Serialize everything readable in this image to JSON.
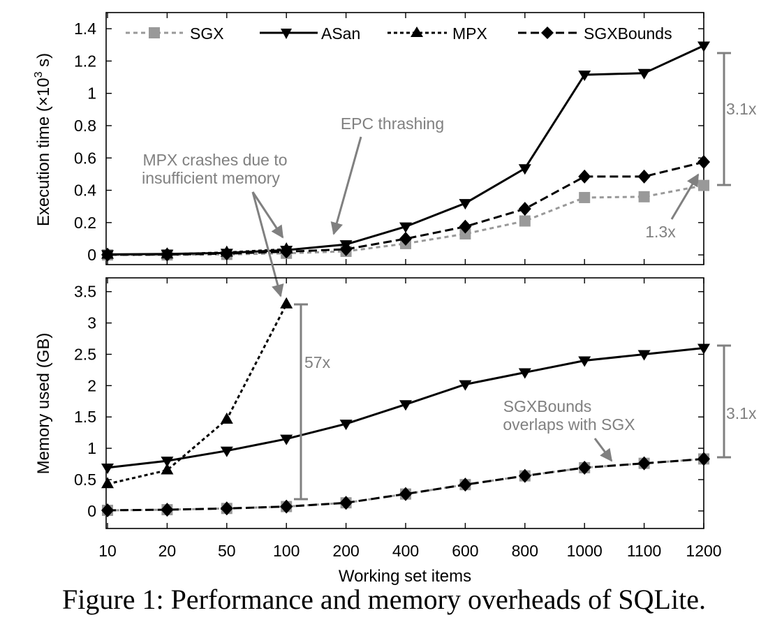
{
  "figure": {
    "caption": "Figure 1: Performance and memory overheads of SQLite.",
    "xlabel": "Working set items"
  },
  "colors": {
    "sgx": "#999999",
    "black": "#000000",
    "annotation": "#808080"
  },
  "chart_data": [
    {
      "type": "line",
      "id": "execution",
      "title": "",
      "ylabel": "Execution time (×10",
      "ylabel_sup": "3",
      "ylabel_end": " s)",
      "xlabel": "Working set items",
      "ylim": [
        -0.06,
        1.5
      ],
      "yticks": [
        "0",
        "0.2",
        "0.4",
        "0.6",
        "0.8",
        "1",
        "1.2",
        "1.4"
      ],
      "categories": [
        "10",
        "20",
        "50",
        "100",
        "200",
        "400",
        "600",
        "800",
        "1000",
        "1100",
        "1200"
      ],
      "legend_position": "top",
      "series": [
        {
          "name": "SGX",
          "style": "sgx",
          "values": [
            0.0,
            0.0,
            0.003,
            0.01,
            0.022,
            0.07,
            0.13,
            0.21,
            0.355,
            0.36,
            0.43
          ]
        },
        {
          "name": "ASan",
          "style": "asan",
          "values": [
            0.003,
            0.006,
            0.012,
            0.03,
            0.065,
            0.175,
            0.32,
            0.535,
            1.115,
            1.125,
            1.295
          ]
        },
        {
          "name": "MPX",
          "style": "mpx",
          "values": [
            0.002,
            0.004,
            0.015,
            0.035,
            null,
            null,
            null,
            null,
            null,
            null,
            null
          ]
        },
        {
          "name": "SGXBounds",
          "style": "sgxb",
          "values": [
            0.001,
            0.002,
            0.008,
            0.02,
            0.035,
            0.1,
            0.175,
            0.285,
            0.485,
            0.485,
            0.575
          ]
        }
      ],
      "annotations": {
        "epc": "EPC thrashing",
        "mpx_line1": "MPX crashes due to",
        "mpx_line2": "insufficient memory",
        "ratio_right": "3.1x",
        "ratio_small": "1.3x"
      }
    },
    {
      "type": "line",
      "id": "memory",
      "title": "",
      "ylabel": "Memory used (GB)",
      "xlabel": "Working set items",
      "ylim": [
        -0.28,
        3.72
      ],
      "yticks": [
        "0",
        "0.5",
        "1",
        "1.5",
        "2",
        "2.5",
        "3",
        "3.5"
      ],
      "categories": [
        "10",
        "20",
        "50",
        "100",
        "200",
        "400",
        "600",
        "800",
        "1000",
        "1100",
        "1200"
      ],
      "series": [
        {
          "name": "SGX",
          "style": "sgx",
          "values": [
            0.01,
            0.02,
            0.04,
            0.07,
            0.13,
            0.27,
            0.42,
            0.56,
            0.69,
            0.76,
            0.83
          ]
        },
        {
          "name": "ASan",
          "style": "asan",
          "values": [
            0.69,
            0.8,
            0.96,
            1.15,
            1.39,
            1.7,
            2.02,
            2.21,
            2.4,
            2.5,
            2.6
          ]
        },
        {
          "name": "MPX",
          "style": "mpx",
          "values": [
            0.43,
            0.65,
            1.46,
            3.3,
            null,
            null,
            null,
            null,
            null,
            null,
            null
          ]
        },
        {
          "name": "SGXBounds",
          "style": "sgxb",
          "values": [
            0.01,
            0.02,
            0.04,
            0.07,
            0.13,
            0.27,
            0.42,
            0.56,
            0.69,
            0.76,
            0.83
          ]
        }
      ],
      "annotations": {
        "ratio_mpx": "57x",
        "ratio_right": "3.1x",
        "overlap_line1": "SGXBounds",
        "overlap_line2": "overlaps with SGX"
      }
    }
  ]
}
